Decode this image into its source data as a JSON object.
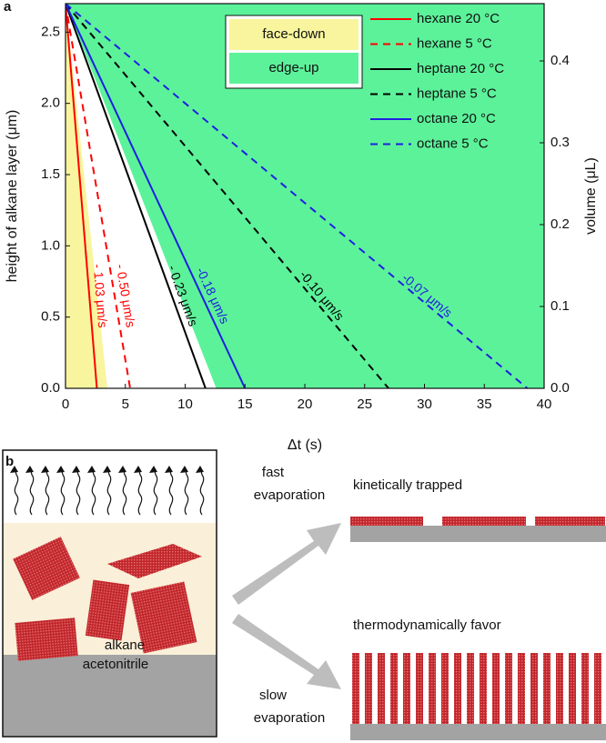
{
  "panel_a": {
    "label": "a"
  },
  "chart_data": {
    "type": "line",
    "xlabel": "Δt (s)",
    "ylabel": "height of alkane layer (μm)",
    "y2label": "volume (μL)",
    "xlim": [
      0,
      40
    ],
    "xticks": [
      0,
      5,
      10,
      15,
      20,
      25,
      30,
      35,
      40
    ],
    "ylim": [
      0,
      2.7
    ],
    "yticks": [
      {
        "value": 0,
        "label": "0.0"
      },
      0.5,
      {
        "value": 1,
        "label": "1.0"
      },
      1.5,
      {
        "value": 2,
        "label": "2.0"
      },
      2.5
    ],
    "y2lim": [
      0,
      0.47
    ],
    "y2ticks": [
      {
        "value": 0,
        "label": "0.0"
      },
      0.1,
      0.2,
      0.3,
      0.4
    ],
    "regions": [
      {
        "name": "face-down",
        "color": "#f8f59e",
        "side": "left",
        "x": [
          0,
          3.5
        ],
        "values": [
          2.7,
          0
        ]
      },
      {
        "name": "edge-up",
        "color": "#5cf29a",
        "side": "right",
        "x": [
          0,
          12.6
        ],
        "values": [
          2.7,
          0
        ]
      }
    ],
    "series": [
      {
        "name": "hexane 20 °C",
        "color": "#ff0000",
        "dash": false,
        "x": [
          0,
          2.62
        ],
        "values": [
          2.7,
          0
        ],
        "label": "- 1.03 μm/s"
      },
      {
        "name": "hexane 5 °C",
        "color": "#ff0000",
        "dash": true,
        "x": [
          0,
          5.4
        ],
        "values": [
          2.7,
          0
        ],
        "label": "- 0.50 μm/s"
      },
      {
        "name": "heptane 20 °C",
        "color": "#000000",
        "dash": false,
        "x": [
          0,
          11.7
        ],
        "values": [
          2.7,
          0
        ],
        "label": "- 0.23 μm/s"
      },
      {
        "name": "heptane 5 °C",
        "color": "#000000",
        "dash": true,
        "x": [
          0,
          27
        ],
        "values": [
          2.7,
          0
        ],
        "label": "-0.10 μm/s"
      },
      {
        "name": "octane 20 °C",
        "color": "#1f1fe0",
        "dash": false,
        "x": [
          0,
          15
        ],
        "values": [
          2.7,
          0
        ],
        "label": "-0.18 μm/s"
      },
      {
        "name": "octane 5 °C",
        "color": "#1f1fe0",
        "dash": true,
        "x": [
          0,
          38.6
        ],
        "values": [
          2.7,
          0
        ],
        "label": "-0.07 μm/s"
      }
    ]
  },
  "panel_b": {
    "label": "b",
    "layers": [
      "alkane",
      "acetonitrile"
    ],
    "fast": [
      "fast",
      "evaporation"
    ],
    "slow": [
      "slow",
      "evaporation"
    ],
    "outcomes": [
      "kinetically trapped",
      "thermodynamically favor"
    ]
  }
}
